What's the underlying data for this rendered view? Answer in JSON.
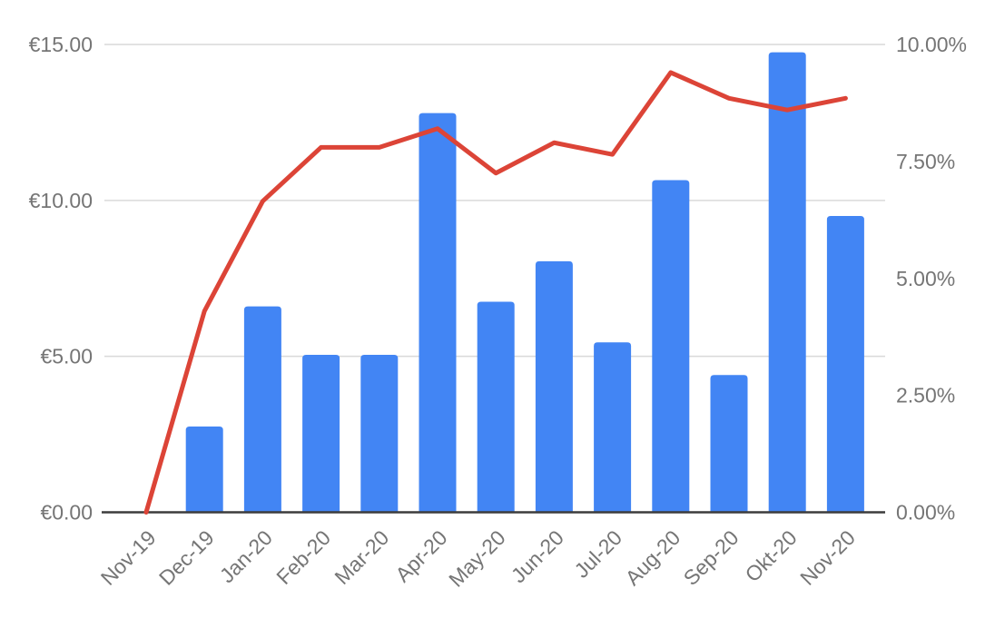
{
  "page": {
    "background": "#ffffff",
    "title": ""
  },
  "chart_data": {
    "type": "combo",
    "title": "",
    "subtitle": "",
    "legend": "none",
    "grid": "horizontal-major",
    "categories": [
      "Nov-19",
      "Dec-19",
      "Jan-20",
      "Feb-20",
      "Mar-20",
      "Apr-20",
      "May-20",
      "Jun-20",
      "Jul-20",
      "Aug-20",
      "Sep-20",
      "Okt-20",
      "Nov-20"
    ],
    "series": [
      {
        "id": "bars",
        "type": "bar",
        "axis": "left",
        "color": "#4285F4",
        "values": [
          0,
          2.75,
          6.6,
          5.05,
          5.05,
          12.8,
          6.75,
          8.05,
          5.45,
          10.65,
          4.4,
          14.75,
          9.5
        ]
      },
      {
        "id": "line",
        "type": "line",
        "axis": "right",
        "color": "#DC4437",
        "values": [
          0,
          4.3,
          6.65,
          7.8,
          7.8,
          8.2,
          7.25,
          7.9,
          7.65,
          9.4,
          8.85,
          8.6,
          8.85
        ]
      }
    ],
    "left_axis": {
      "range": [
        0,
        15
      ],
      "format": "currency-eur",
      "ticks": [
        {
          "value": 0,
          "label": "€0.00"
        },
        {
          "value": 5,
          "label": "€5.00"
        },
        {
          "value": 10,
          "label": "€10.00"
        },
        {
          "value": 15,
          "label": "€15.00"
        }
      ]
    },
    "right_axis": {
      "range": [
        0,
        10
      ],
      "format": "percent",
      "ticks": [
        {
          "value": 0,
          "label": "0.00%"
        },
        {
          "value": 2.5,
          "label": "2.50%"
        },
        {
          "value": 5,
          "label": "5.00%"
        },
        {
          "value": 7.5,
          "label": "7.50%"
        },
        {
          "value": 10,
          "label": "10.00%"
        }
      ]
    },
    "colors": {
      "bar": "#4285F4",
      "line": "#DC4437",
      "grid_line": "#d9d9d9",
      "baseline": "#3c3c3c",
      "axis_label": "#757575"
    }
  }
}
